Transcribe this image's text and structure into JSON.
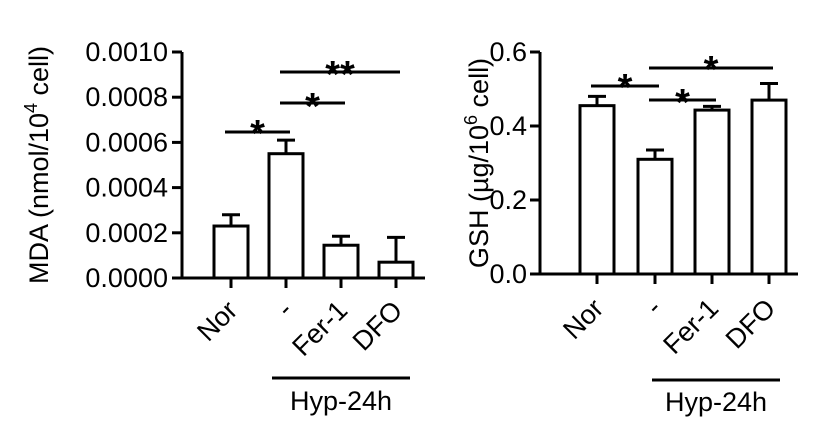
{
  "chart_data": [
    {
      "type": "bar",
      "categories": [
        "Nor",
        "-",
        "Fer-1",
        "DFO"
      ],
      "values": [
        0.00023,
        0.00055,
        0.000145,
        7e-05
      ],
      "errors": [
        5e-05,
        6e-05,
        4e-05,
        0.00011
      ],
      "ylabel_main": "MDA (nmol/10",
      "ylabel_sup": "4",
      "ylabel_tail": " cell)",
      "ylim": [
        0,
        0.001
      ],
      "yticks": [
        "0.0000",
        "0.0002",
        "0.0004",
        "0.0006",
        "0.0008",
        "0.0010"
      ],
      "group_label": "Hyp-24h",
      "significance": [
        {
          "from": 0,
          "to": 1,
          "label": "*"
        },
        {
          "from": 1,
          "to": 2,
          "label": "*"
        },
        {
          "from": 1,
          "to": 3,
          "label": "**"
        }
      ]
    },
    {
      "type": "bar",
      "categories": [
        "Nor",
        "-",
        "Fer-1",
        "DFO"
      ],
      "values": [
        0.455,
        0.31,
        0.443,
        0.47
      ],
      "errors": [
        0.025,
        0.025,
        0.01,
        0.045
      ],
      "ylabel_main": "GSH (µg/10",
      "ylabel_sup": "6",
      "ylabel_tail": " cell)",
      "ylim": [
        0,
        0.6
      ],
      "yticks": [
        "0.0",
        "0.2",
        "0.4",
        "0.6"
      ],
      "group_label": "Hyp-24h",
      "significance": [
        {
          "from": 0,
          "to": 1,
          "label": "*"
        },
        {
          "from": 1,
          "to": 2,
          "label": "*"
        },
        {
          "from": 1,
          "to": 3,
          "label": "*"
        }
      ]
    }
  ]
}
